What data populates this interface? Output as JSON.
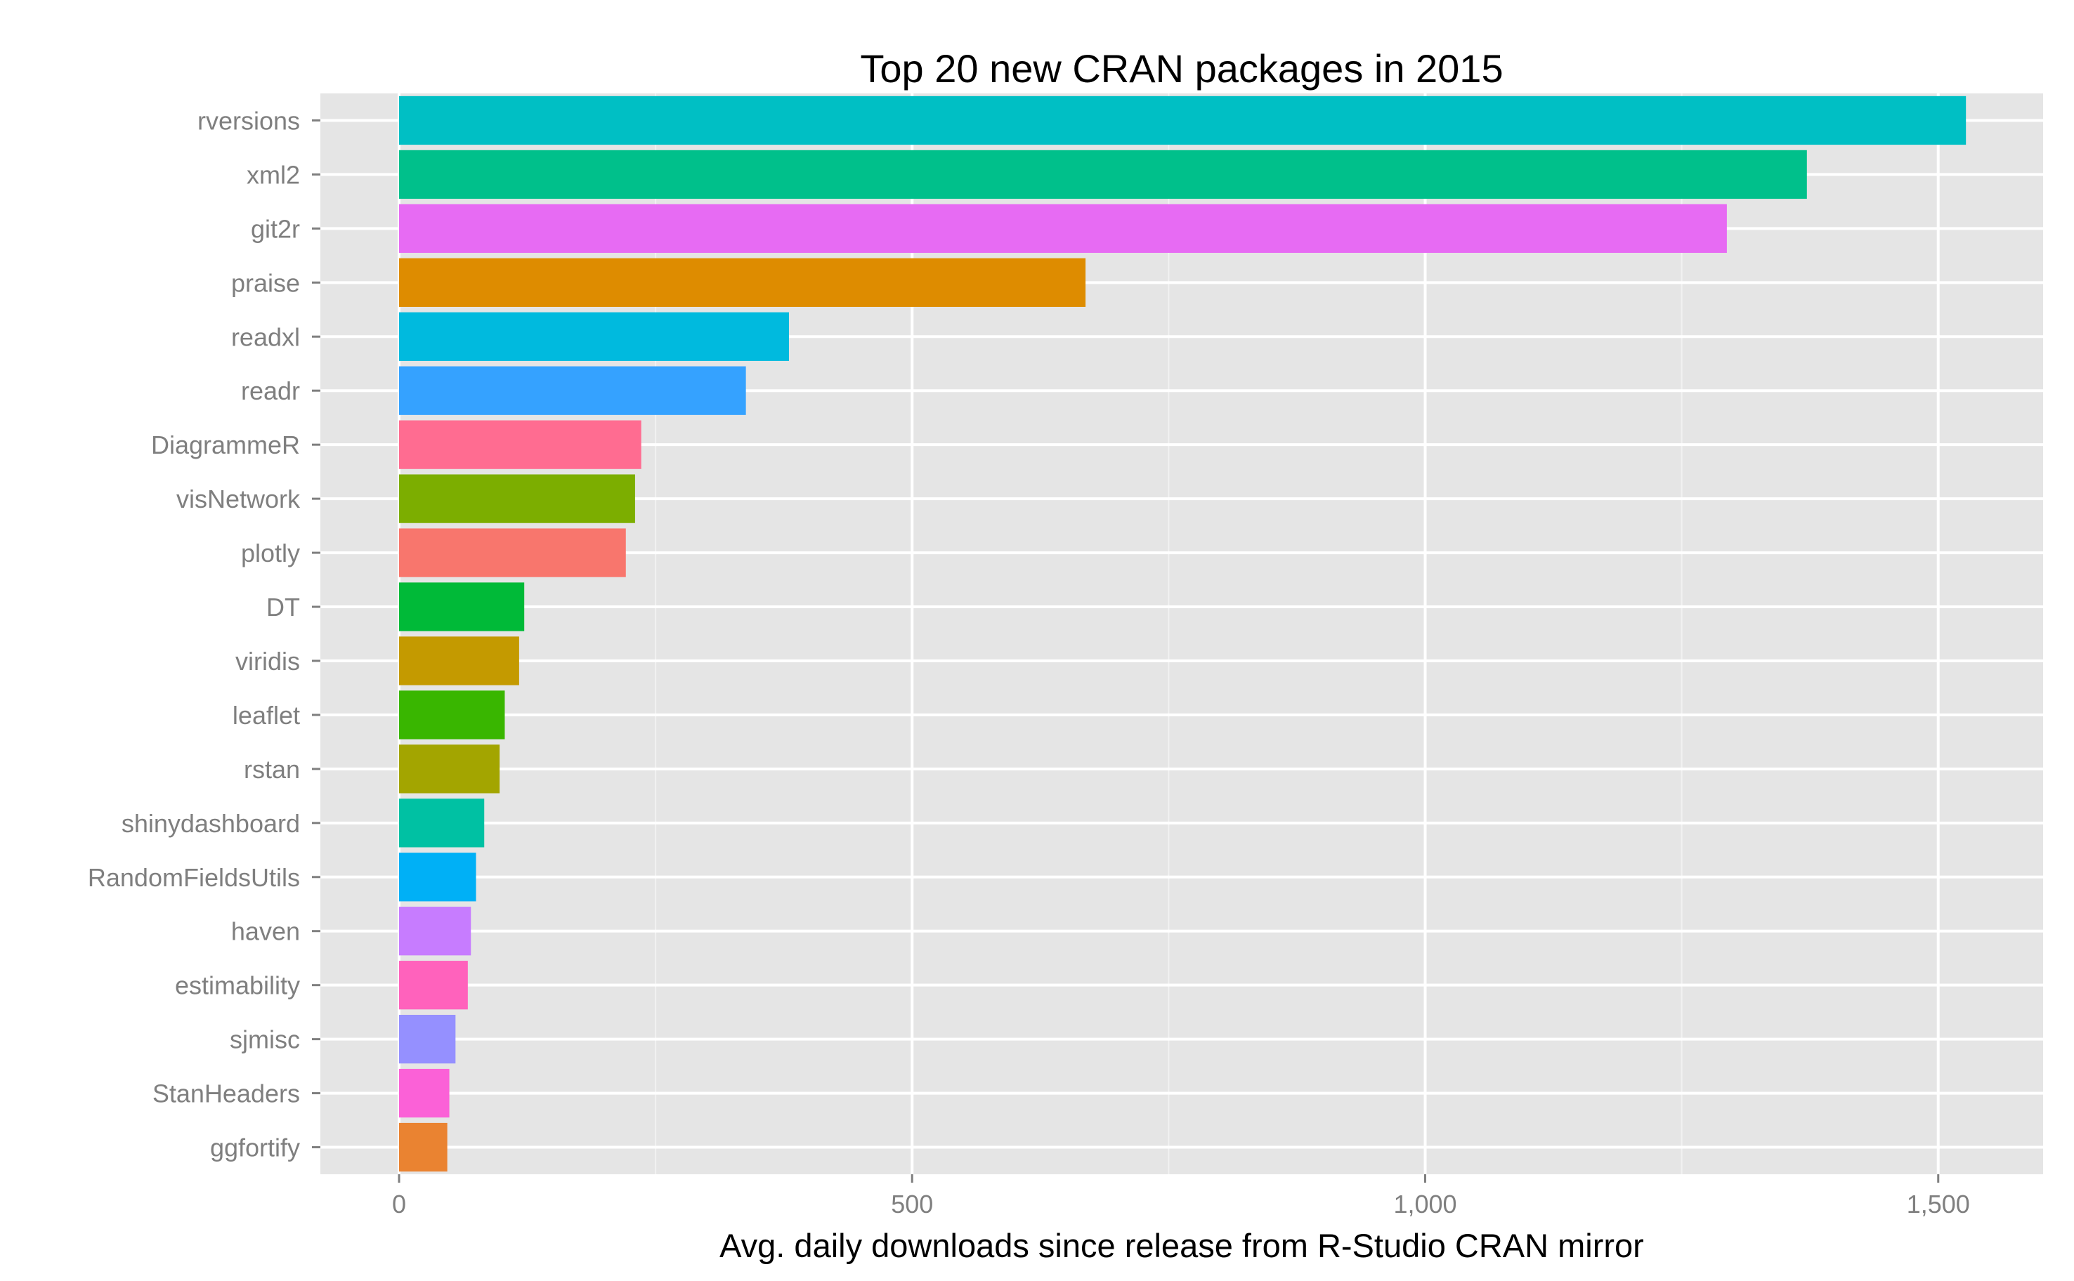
{
  "chart_data": {
    "type": "bar",
    "orientation": "horizontal",
    "title": "Top 20 new CRAN packages in 2015",
    "xlabel": "Avg. daily downloads since release from R-Studio CRAN mirror",
    "ylabel": "",
    "xlim": [
      -75,
      1600
    ],
    "x_ticks": [
      {
        "value": 0,
        "label": "0"
      },
      {
        "value": 500,
        "label": "500"
      },
      {
        "value": 1000,
        "label": "1,000"
      },
      {
        "value": 1500,
        "label": "1,500"
      }
    ],
    "grid": true,
    "legend": "none",
    "categories": [
      "rversions",
      "xml2",
      "git2r",
      "praise",
      "readxl",
      "readr",
      "DiagrammeR",
      "visNetwork",
      "plotly",
      "DT",
      "viridis",
      "leaflet",
      "rstan",
      "shinydashboard",
      "RandomFieldsUtils",
      "haven",
      "estimability",
      "sjmisc",
      "StanHeaders",
      "ggfortify"
    ],
    "values": [
      1527,
      1372,
      1294,
      669,
      380,
      338,
      236,
      230,
      221,
      122,
      117,
      103,
      98,
      83,
      75,
      70,
      67,
      55,
      49,
      47
    ],
    "colors": [
      "#00BFC4",
      "#00C08B",
      "#E76BF3",
      "#DE8C00",
      "#00BADE",
      "#35A2FF",
      "#FF6C91",
      "#7CAE00",
      "#F8766D",
      "#00BA38",
      "#C49A00",
      "#39B600",
      "#A3A500",
      "#00C1A3",
      "#00B0F6",
      "#C77CFF",
      "#FF62BC",
      "#9590FF",
      "#FB61D7",
      "#EA8331"
    ]
  }
}
